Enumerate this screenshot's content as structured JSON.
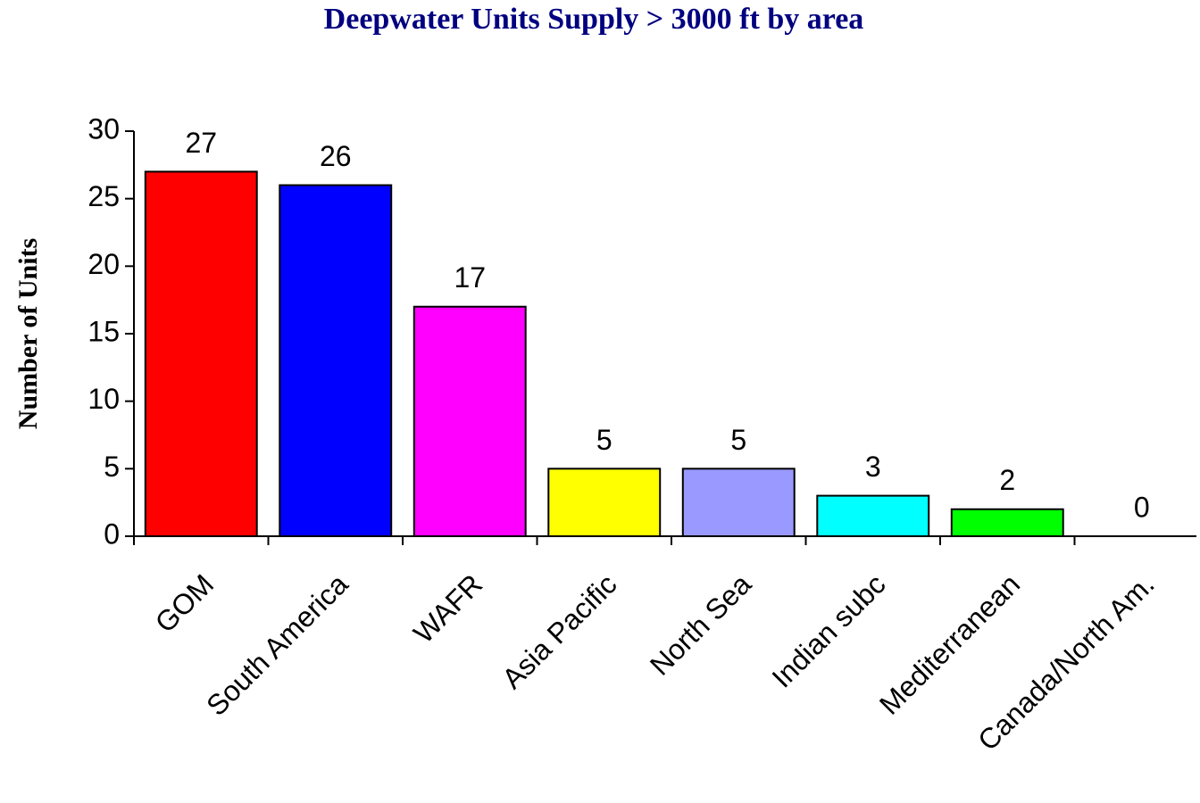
{
  "chart_data": {
    "type": "bar",
    "title": "Deepwater Units Supply > 3000 ft by area",
    "y_label": "Number of Units",
    "categories": [
      "GOM",
      "South America",
      "WAFR",
      "Asia Pacific",
      "North Sea",
      "Indian subc",
      "Mediterranean",
      "Canada/North Am."
    ],
    "values": [
      27,
      26,
      17,
      5,
      5,
      3,
      2,
      0
    ],
    "colors": [
      "#ff0000",
      "#0000ff",
      "#ff00ff",
      "#ffff00",
      "#9999ff",
      "#00ffff",
      "#00ff00",
      "#ffffff"
    ],
    "ylim": [
      0,
      30
    ],
    "yticks": [
      0,
      5,
      10,
      15,
      20,
      25,
      30
    ],
    "grid": false
  }
}
